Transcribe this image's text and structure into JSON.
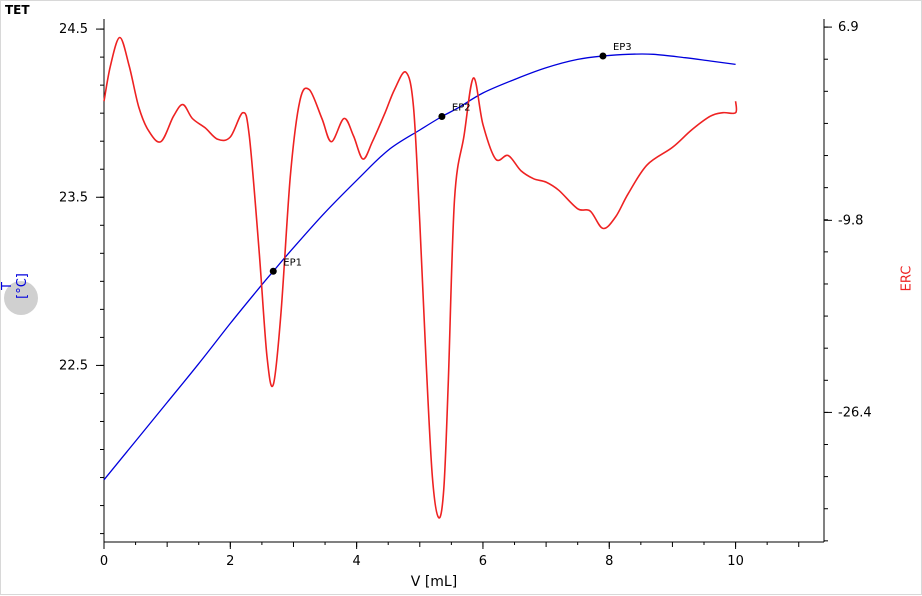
{
  "chart_data": {
    "type": "line",
    "title": "TET",
    "xlabel": "V [mL]",
    "ylabel_left": "T [°C]",
    "ylabel_right": "ERC",
    "xlim": [
      0,
      11.4
    ],
    "xticks": [
      0,
      2,
      4,
      6,
      8,
      10
    ],
    "ylim_left": [
      21.45,
      24.56
    ],
    "yticks_left": [
      22.5,
      23.5,
      24.5
    ],
    "ylim_right": [
      -37.6,
      7.6
    ],
    "yticks_right": [
      -26.4,
      -9.8,
      6.9
    ],
    "grid": false,
    "series": [
      {
        "axis": "left",
        "color": "#0000dd",
        "x": [
          0,
          0.5,
          1,
          1.5,
          2,
          2.5,
          2.68,
          3,
          3.5,
          4,
          4.5,
          5,
          5.35,
          5.6,
          6,
          6.5,
          7,
          7.5,
          7.9,
          8.3,
          8.7,
          9.2,
          9.6,
          10
        ],
        "y": [
          21.82,
          22.05,
          22.28,
          22.51,
          22.75,
          22.98,
          23.06,
          23.2,
          23.41,
          23.6,
          23.78,
          23.9,
          23.98,
          24.03,
          24.12,
          24.2,
          24.27,
          24.32,
          24.34,
          24.35,
          24.35,
          24.33,
          24.31,
          24.29
        ]
      },
      {
        "axis": "right",
        "color": "#ee2222",
        "x": [
          0,
          0.1,
          0.25,
          0.4,
          0.55,
          0.7,
          0.9,
          1.1,
          1.25,
          1.4,
          1.6,
          1.8,
          2.0,
          2.2,
          2.3,
          2.45,
          2.58,
          2.68,
          2.8,
          2.95,
          3.1,
          3.25,
          3.45,
          3.6,
          3.8,
          3.95,
          4.1,
          4.25,
          4.45,
          4.6,
          4.78,
          4.9,
          5.0,
          5.1,
          5.2,
          5.3,
          5.38,
          5.45,
          5.55,
          5.7,
          5.85,
          6.0,
          6.2,
          6.4,
          6.6,
          6.8,
          7.0,
          7.2,
          7.5,
          7.7,
          7.9,
          8.1,
          8.3,
          8.6,
          9.0,
          9.3,
          9.6,
          9.8,
          10.0,
          10.0
        ],
        "y": [
          0.5,
          3.5,
          6.0,
          3.5,
          0.0,
          -2.0,
          -3.0,
          -0.8,
          0.2,
          -1.0,
          -1.8,
          -2.8,
          -2.6,
          -0.5,
          -2.5,
          -12.0,
          -21.5,
          -24.0,
          -18.0,
          -6.0,
          0.5,
          1.5,
          -1.0,
          -3.0,
          -1.0,
          -2.5,
          -4.5,
          -3.0,
          -0.5,
          1.5,
          3.0,
          0.0,
          -10.0,
          -22.0,
          -32.0,
          -35.5,
          -33.0,
          -24.0,
          -8.0,
          -2.5,
          2.5,
          -1.5,
          -4.5,
          -4.2,
          -5.5,
          -6.2,
          -6.5,
          -7.2,
          -8.8,
          -9.0,
          -10.5,
          -9.5,
          -7.5,
          -5.0,
          -3.5,
          -2.0,
          -0.8,
          -0.5,
          -0.5,
          0.5
        ]
      }
    ],
    "annotations": [
      {
        "label": "EP1",
        "x": 2.68,
        "y": 23.06
      },
      {
        "label": "EP2",
        "x": 5.35,
        "y": 23.98
      },
      {
        "label": "EP3",
        "x": 7.9,
        "y": 24.34
      }
    ]
  }
}
